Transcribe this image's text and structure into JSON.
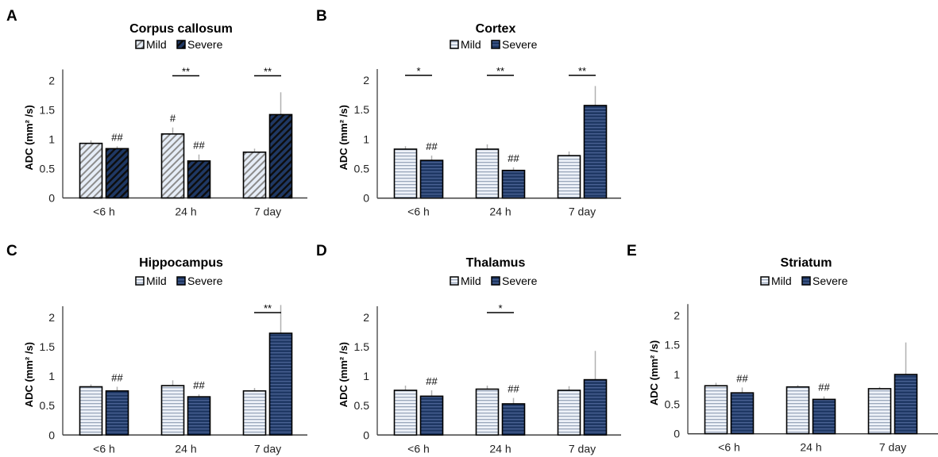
{
  "figure": {
    "legend_labels": [
      "Mild",
      "Severe"
    ],
    "colors": {
      "mild_fill": "#e6edf7",
      "mild_stripe": "#8c8c8c",
      "severe_fill": "#1f3864",
      "severe_stripe_diag": "#0d0d0d",
      "severe_stripe_horiz": "#4a6294",
      "mild_stripe_horiz": "#9aa7bb",
      "error_bar": "#b0b0b0",
      "axis": "#404040"
    }
  },
  "chart_data": [
    {
      "panel": "A",
      "type": "bar",
      "pattern": "diagonal",
      "title": "Corpus callosum",
      "ylabel": "ADC (mm² /s)",
      "xlabel": "",
      "categories": [
        "<6 h",
        "24 h",
        "7 day"
      ],
      "ylim": [
        0,
        2
      ],
      "yticks": [
        "0",
        "0.5",
        "1",
        "1.5",
        "2"
      ],
      "legend": "top-center",
      "series": [
        {
          "name": "Mild",
          "values": [
            0.93,
            1.09,
            0.78
          ],
          "errors": [
            0.05,
            0.11,
            0.06
          ],
          "markers": [
            "",
            "#",
            ""
          ]
        },
        {
          "name": "Severe",
          "values": [
            0.84,
            0.63,
            1.42
          ],
          "errors": [
            0.04,
            0.11,
            0.38
          ],
          "markers": [
            "##",
            "##",
            ""
          ]
        }
      ],
      "significance": [
        "",
        "**",
        "**"
      ]
    },
    {
      "panel": "B",
      "type": "bar",
      "pattern": "horizontal",
      "title": "Cortex",
      "ylabel": "ADC (mm² /s)",
      "xlabel": "",
      "categories": [
        "<6 h",
        "24 h",
        "7 day"
      ],
      "ylim": [
        0,
        2
      ],
      "yticks": [
        "0",
        "0.5",
        "1",
        "1.5",
        "2"
      ],
      "legend": "top-center",
      "series": [
        {
          "name": "Mild",
          "values": [
            0.83,
            0.83,
            0.72
          ],
          "errors": [
            0.05,
            0.08,
            0.07
          ],
          "markers": [
            "",
            "",
            ""
          ]
        },
        {
          "name": "Severe",
          "values": [
            0.64,
            0.47,
            1.57
          ],
          "errors": [
            0.08,
            0.05,
            0.33
          ],
          "markers": [
            "##",
            "##",
            ""
          ]
        }
      ],
      "significance": [
        "*",
        "**",
        "**"
      ]
    },
    {
      "panel": "C",
      "type": "bar",
      "pattern": "horizontal",
      "title": "Hippocampus",
      "ylabel": "ADC (mm² /s)",
      "xlabel": "",
      "categories": [
        "<6 h",
        "24 h",
        "7 day"
      ],
      "ylim": [
        0,
        2
      ],
      "yticks": [
        "0",
        "0.5",
        "1",
        "1.5",
        "2"
      ],
      "legend": "top-center",
      "series": [
        {
          "name": "Mild",
          "values": [
            0.82,
            0.84,
            0.75
          ],
          "errors": [
            0.04,
            0.09,
            0.05
          ],
          "markers": [
            "",
            "",
            ""
          ]
        },
        {
          "name": "Severe",
          "values": [
            0.75,
            0.65,
            1.73
          ],
          "errors": [
            0.07,
            0.04,
            0.48
          ],
          "markers": [
            "##",
            "##",
            ""
          ]
        }
      ],
      "significance": [
        "",
        "",
        "**"
      ]
    },
    {
      "panel": "D",
      "type": "bar",
      "pattern": "horizontal",
      "title": "Thalamus",
      "ylabel": "ADC (mm² /s)",
      "xlabel": "",
      "categories": [
        "<6 h",
        "24 h",
        "7 day"
      ],
      "ylim": [
        0,
        2
      ],
      "yticks": [
        "0",
        "0.5",
        "1",
        "1.5",
        "2"
      ],
      "legend": "top-center",
      "series": [
        {
          "name": "Mild",
          "values": [
            0.76,
            0.78,
            0.76
          ],
          "errors": [
            0.08,
            0.06,
            0.07
          ],
          "markers": [
            "",
            "",
            ""
          ]
        },
        {
          "name": "Severe",
          "values": [
            0.66,
            0.53,
            0.94
          ],
          "errors": [
            0.1,
            0.1,
            0.49
          ],
          "markers": [
            "##",
            "##",
            ""
          ]
        }
      ],
      "significance": [
        "",
        "*",
        ""
      ]
    },
    {
      "panel": "E",
      "type": "bar",
      "pattern": "horizontal",
      "title": "Striatum",
      "ylabel": "ADC (mm² /s)",
      "xlabel": "",
      "categories": [
        "<6 h",
        "24 h",
        "7 day"
      ],
      "ylim": [
        0,
        2
      ],
      "yticks": [
        "0",
        "0.5",
        "1",
        "1.5",
        "2"
      ],
      "legend": "top-center",
      "series": [
        {
          "name": "Mild",
          "values": [
            0.81,
            0.79,
            0.76
          ],
          "errors": [
            0.05,
            0.03,
            0.03
          ],
          "markers": [
            "",
            "",
            ""
          ]
        },
        {
          "name": "Severe",
          "values": [
            0.69,
            0.58,
            1.0
          ],
          "errors": [
            0.09,
            0.05,
            0.54
          ],
          "markers": [
            "##",
            "##",
            ""
          ]
        }
      ],
      "significance": [
        "",
        "",
        ""
      ]
    }
  ]
}
